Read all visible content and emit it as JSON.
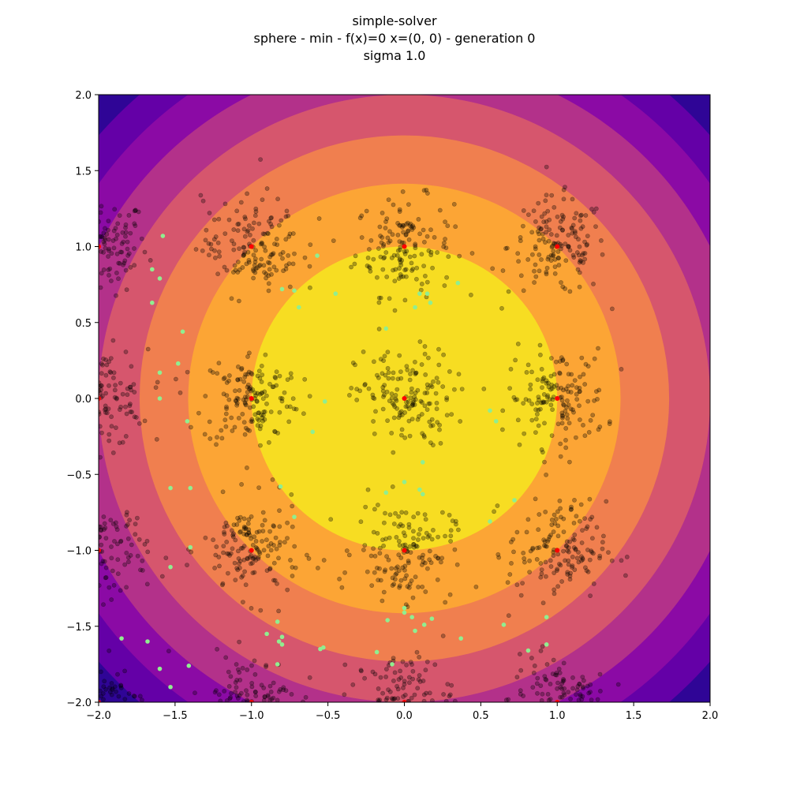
{
  "chart_data": {
    "type": "scatter",
    "title": "simple-solver",
    "subtitle": "sphere - min - f(x)=0 x=(0, 0) - generation 0",
    "subtitle2": "sigma 1.0",
    "xlabel": "",
    "ylabel": "",
    "xlim": [
      -2.0,
      2.0
    ],
    "ylim": [
      -2.0,
      2.0
    ],
    "grid": false,
    "x_ticks": [
      "−2.0",
      "−1.5",
      "−1.0",
      "−0.5",
      "0.0",
      "0.5",
      "1.0",
      "1.5",
      "2.0"
    ],
    "y_ticks": [
      "−2.0",
      "−1.5",
      "−1.0",
      "−0.5",
      "0.0",
      "0.5",
      "1.0",
      "1.5",
      "2.0"
    ],
    "background": {
      "type": "contour",
      "function": "x^2 + y^2",
      "levels": [
        0.0,
        1.0,
        2.0,
        3.0,
        4.0,
        5.0,
        6.0,
        7.0,
        8.0
      ],
      "colors": [
        "#f7dd22",
        "#fca535",
        "#f07f4f",
        "#d6566d",
        "#b3318a",
        "#8b0aa5",
        "#6400a7",
        "#2f0596"
      ]
    },
    "series": [
      {
        "role": "centers",
        "color": "#ff0000",
        "points": [
          [
            -2,
            1
          ],
          [
            0,
            1
          ],
          [
            1,
            1
          ],
          [
            -2,
            0
          ],
          [
            -1,
            0
          ],
          [
            0,
            0
          ],
          [
            1,
            0
          ],
          [
            -2,
            -1
          ],
          [
            -1,
            -1
          ],
          [
            0,
            -1
          ],
          [
            1,
            -1
          ],
          [
            -2,
            -2
          ],
          [
            -1,
            -2
          ],
          [
            0,
            -2
          ],
          [
            1,
            -2
          ],
          [
            -1,
            1
          ]
        ]
      },
      {
        "role": "highlighted samples",
        "color": "#90ee90",
        "points": [
          [
            -1.58,
            1.07
          ],
          [
            -1.65,
            0.85
          ],
          [
            -1.6,
            0.79
          ],
          [
            -1.65,
            0.63
          ],
          [
            -1.45,
            0.44
          ],
          [
            -1.48,
            0.23
          ],
          [
            -1.6,
            0.17
          ],
          [
            -1.6,
            0.0
          ],
          [
            -1.42,
            -0.15
          ],
          [
            -1.53,
            -0.59
          ],
          [
            -1.4,
            -0.59
          ],
          [
            -1.4,
            -0.98
          ],
          [
            -1.53,
            -1.11
          ],
          [
            -1.85,
            -1.58
          ],
          [
            -1.68,
            -1.6
          ],
          [
            -1.6,
            -1.78
          ],
          [
            -1.53,
            -1.9
          ],
          [
            -1.41,
            -1.76
          ],
          [
            -0.8,
            -1.57
          ],
          [
            -0.8,
            -1.62
          ],
          [
            -0.83,
            -1.75
          ],
          [
            -0.82,
            -1.6
          ],
          [
            -0.83,
            -1.47
          ],
          [
            -0.9,
            -1.55
          ],
          [
            -0.55,
            -1.65
          ],
          [
            -0.53,
            -1.64
          ],
          [
            -0.08,
            -1.75
          ],
          [
            0.05,
            -1.44
          ],
          [
            0.07,
            -1.53
          ],
          [
            0.13,
            -1.49
          ],
          [
            0.18,
            -1.45
          ],
          [
            -0.11,
            -1.46
          ],
          [
            -0.18,
            -1.67
          ],
          [
            0.0,
            -1.38
          ],
          [
            0.0,
            -1.41
          ],
          [
            0.37,
            -1.58
          ],
          [
            0.65,
            -1.49
          ],
          [
            0.81,
            -1.66
          ],
          [
            0.93,
            -1.62
          ],
          [
            0.93,
            -1.44
          ],
          [
            -0.72,
            -0.78
          ],
          [
            -0.81,
            -0.58
          ],
          [
            -0.12,
            -0.62
          ],
          [
            0.0,
            -0.55
          ],
          [
            0.1,
            -0.6
          ],
          [
            0.12,
            -0.63
          ],
          [
            0.12,
            -0.42
          ],
          [
            0.56,
            -0.08
          ],
          [
            0.6,
            -0.15
          ],
          [
            0.72,
            -0.67
          ],
          [
            0.56,
            -0.81
          ],
          [
            -0.52,
            -0.02
          ],
          [
            -0.6,
            -0.22
          ],
          [
            -0.45,
            0.69
          ],
          [
            -0.72,
            0.71
          ],
          [
            -0.8,
            0.72
          ],
          [
            -0.69,
            0.6
          ],
          [
            -0.57,
            0.94
          ],
          [
            0.07,
            0.6
          ],
          [
            0.15,
            0.69
          ],
          [
            0.17,
            0.63
          ],
          [
            0.35,
            0.76
          ],
          [
            -0.12,
            0.46
          ],
          [
            0.1,
            0.69
          ]
        ]
      },
      {
        "role": "population",
        "color": "#000000",
        "cluster_spread": 0.16,
        "points_per_cluster": 150
      }
    ]
  }
}
